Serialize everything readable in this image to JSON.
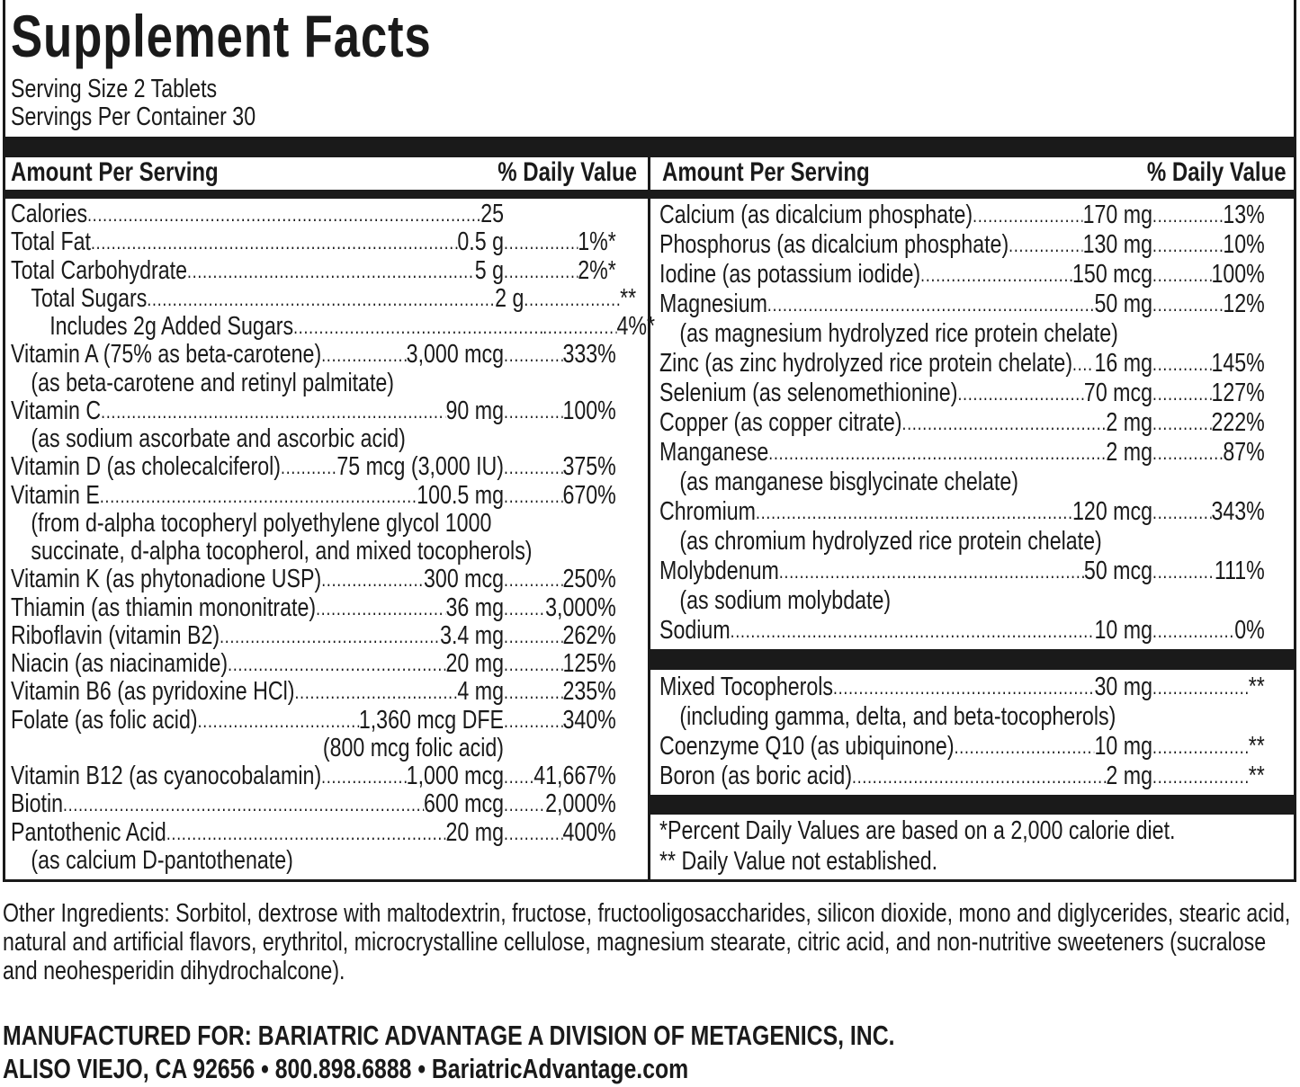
{
  "title": "Supplement Facts",
  "serving_size": "Serving Size 2 Tablets",
  "servings_per_container": "Servings Per Container 30",
  "header": {
    "amount": "Amount Per Serving",
    "dv": "% Daily Value"
  },
  "left_items": [
    {
      "type": "row",
      "name": "Calories",
      "amount": "25",
      "dv": ""
    },
    {
      "type": "row",
      "name": "Total Fat",
      "amount": "0.5 g",
      "dv": "1%*"
    },
    {
      "type": "row",
      "name": "Total Carbohydrate",
      "amount": "5 g",
      "dv": "2%*"
    },
    {
      "type": "row",
      "indent": 1,
      "name": "Total Sugars ",
      "amount": "2 g",
      "dv": "**"
    },
    {
      "type": "row",
      "indent": 2,
      "name": "Includes 2g Added Sugars ",
      "amount": "",
      "dv": "4%*"
    },
    {
      "type": "row",
      "name": "Vitamin A (75% as beta-carotene) ",
      "amount": "3,000 mcg",
      "dv": "333%"
    },
    {
      "type": "sub",
      "text": "(as beta-carotene and retinyl palmitate)"
    },
    {
      "type": "row",
      "name": "Vitamin C ",
      "amount": "90 mg",
      "dv": "100%"
    },
    {
      "type": "sub",
      "text": "(as sodium ascorbate and ascorbic acid)"
    },
    {
      "type": "row",
      "name": "Vitamin D (as cholecalciferol)",
      "amount": " 75 mcg (3,000 IU)",
      "dv": "375%"
    },
    {
      "type": "row",
      "name": "Vitamin E",
      "amount": "100.5 mg",
      "dv": "670%"
    },
    {
      "type": "sub",
      "text": "(from d-alpha tocopheryl polyethylene glycol 1000"
    },
    {
      "type": "sub",
      "text": "succinate, d-alpha tocopherol, and mixed tocopherols)"
    },
    {
      "type": "row",
      "name": "Vitamin K (as phytonadione USP)",
      "amount": "300 mcg",
      "dv": "250%"
    },
    {
      "type": "row",
      "name": "Thiamin (as thiamin mononitrate) ",
      "amount": "36 mg",
      "dv": "3,000%"
    },
    {
      "type": "row",
      "name": "Riboflavin (vitamin B2)",
      "amount": "3.4 mg",
      "dv": "262%"
    },
    {
      "type": "row",
      "name": "Niacin (as niacinamide)",
      "amount": "20 mg",
      "dv": "125%"
    },
    {
      "type": "row",
      "name": "Vitamin B6 (as pyridoxine HCl) ",
      "amount": "4 mg",
      "dv": "235%"
    },
    {
      "type": "row",
      "name": "Folate (as folic acid)",
      "amount": "1,360 mcg DFE",
      "dv": "340%"
    },
    {
      "type": "subA",
      "text": "(800 mcg folic acid)"
    },
    {
      "type": "row",
      "name": "Vitamin B12 (as cyanocobalamin)",
      "amount": "1,000 mcg",
      "dv": "41,667%"
    },
    {
      "type": "row",
      "name": "Biotin",
      "amount": "600 mcg",
      "dv": "2,000%"
    },
    {
      "type": "row",
      "name": "Pantothenic Acid",
      "amount": "20 mg",
      "dv": "400%"
    },
    {
      "type": "sub",
      "text": "(as calcium D-pantothenate)"
    }
  ],
  "right_items": [
    {
      "type": "row",
      "name": "Calcium (as dicalcium phosphate) ",
      "amount": "170 mg",
      "dv": "13%"
    },
    {
      "type": "row",
      "name": "Phosphorus (as dicalcium phosphate)",
      "amount": "130 mg",
      "dv": "10%"
    },
    {
      "type": "row",
      "name": "Iodine (as potassium iodide) ",
      "amount": "150 mcg",
      "dv": "100%"
    },
    {
      "type": "row",
      "name": "Magnesium ",
      "amount": "50 mg",
      "dv": "12%"
    },
    {
      "type": "sub",
      "text": "(as magnesium hydrolyzed rice protein chelate)"
    },
    {
      "type": "row",
      "name": "Zinc (as zinc hydrolyzed rice protein chelate)",
      "amount": "16 mg",
      "dv": "145%"
    },
    {
      "type": "row",
      "name": "Selenium (as selenomethionine) ",
      "amount": "70 mcg",
      "dv": "127%"
    },
    {
      "type": "row",
      "name": "Copper (as copper citrate) ",
      "amount": "2 mg",
      "dv": "222%"
    },
    {
      "type": "row",
      "name": "Manganese ",
      "amount": "2 mg",
      "dv": "87%"
    },
    {
      "type": "sub",
      "text": "(as manganese bisglycinate chelate)"
    },
    {
      "type": "row",
      "name": "Chromium",
      "amount": "120 mcg",
      "dv": "343%"
    },
    {
      "type": "sub",
      "text": "(as chromium hydrolyzed rice protein chelate)"
    },
    {
      "type": "row",
      "name": "Molybdenum ",
      "amount": "50 mcg",
      "dv": "111%"
    },
    {
      "type": "sub",
      "text": "(as sodium molybdate)"
    },
    {
      "type": "row",
      "name": "Sodium ",
      "amount": "10 mg",
      "dv": "0%"
    }
  ],
  "right_items_2": [
    {
      "type": "row",
      "name": "Mixed Tocopherols",
      "amount": "30 mg",
      "dv": "**"
    },
    {
      "type": "sub",
      "text": "(including gamma, delta, and beta-tocopherols)"
    },
    {
      "type": "row",
      "name": "Coenzyme Q10 (as ubiquinone)",
      "amount": "10 mg",
      "dv": "**"
    },
    {
      "type": "row",
      "name": "Boron (as boric acid)",
      "amount": "2 mg",
      "dv": "**"
    }
  ],
  "footnotes": [
    " *Percent Daily Values are based on a 2,000 calorie diet.",
    "** Daily Value not established."
  ],
  "other_ingredients": "Other Ingredients: Sorbitol, dextrose with maltodextrin, fructose, fructooligosaccharides, silicon dioxide, mono and diglycerides, stearic acid, natural and artificial flavors, erythritol, microcrystalline cellulose, magnesium stearate, citric acid, and non-nutritive sweeteners (sucralose and neohesperidin dihydrochalcone).",
  "manufacturer": {
    "line1": "MANUFACTURED FOR: BARIATRIC ADVANTAGE A DIVISION OF METAGENICS, INC.",
    "line2": "ALISO VIEJO, CA 92656 • 800.898.6888 • BariatricAdvantage.com"
  }
}
